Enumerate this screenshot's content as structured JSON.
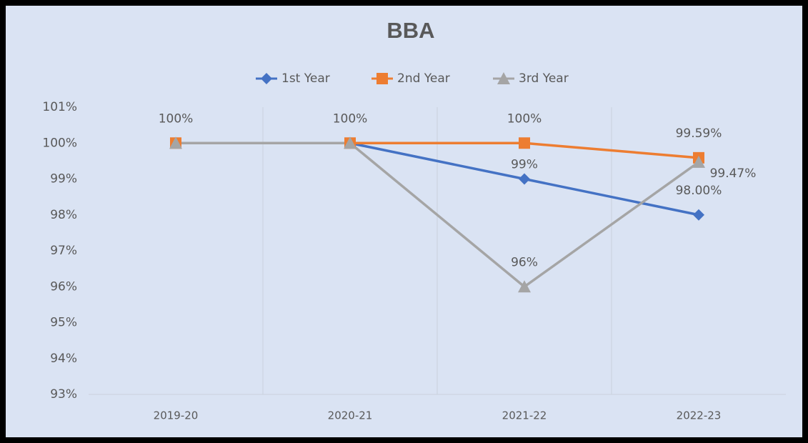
{
  "chart_data": {
    "type": "line",
    "title": "BBA",
    "categories": [
      "2019-20",
      "2020-21",
      "2021-22",
      "2022-23"
    ],
    "series": [
      {
        "name": "1st Year",
        "color": "#4472c4",
        "marker": "diamond",
        "values": [
          100,
          100,
          99,
          98
        ],
        "value_labels": [
          "100%",
          "100%",
          "99%",
          "98.00%"
        ]
      },
      {
        "name": "2nd Year",
        "color": "#ed7d31",
        "marker": "square",
        "values": [
          100,
          100,
          100,
          99.59
        ],
        "value_labels": [
          null,
          null,
          "100%",
          "99.59%"
        ]
      },
      {
        "name": "3rd Year",
        "color": "#a5a5a5",
        "marker": "triangle",
        "values": [
          100,
          100,
          96,
          99.47
        ],
        "value_labels": [
          null,
          null,
          "96%",
          "99.47%"
        ]
      }
    ],
    "ylim": [
      93,
      101
    ],
    "yticks": [
      {
        "value": 93,
        "label": "93%"
      },
      {
        "value": 94,
        "label": "94%"
      },
      {
        "value": 95,
        "label": "95%"
      },
      {
        "value": 96,
        "label": "96%"
      },
      {
        "value": 97,
        "label": "97%"
      },
      {
        "value": 98,
        "label": "98%"
      },
      {
        "value": 99,
        "label": "99%"
      },
      {
        "value": 100,
        "label": "100%"
      },
      {
        "value": 101,
        "label": "101%"
      }
    ],
    "legend": "top"
  }
}
